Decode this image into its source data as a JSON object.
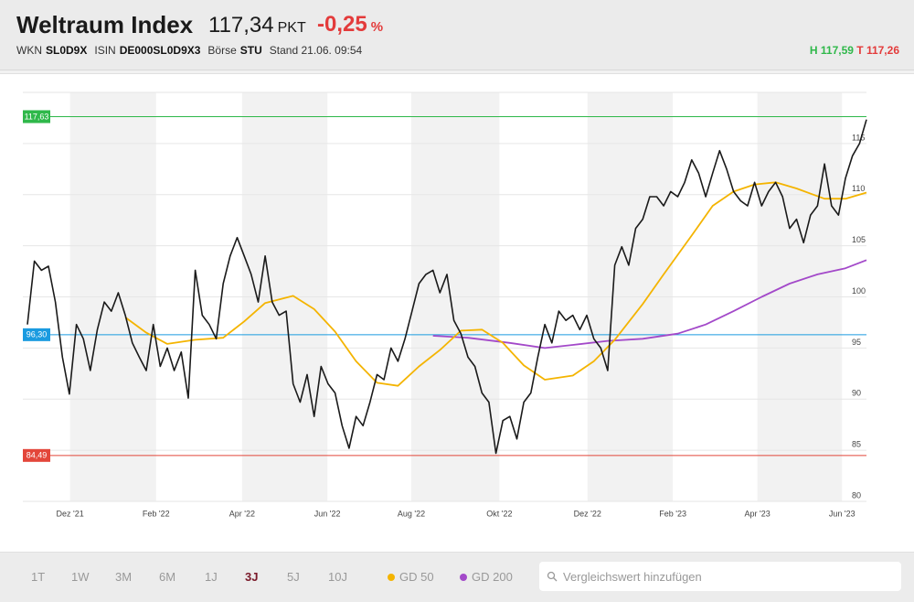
{
  "header": {
    "title": "Weltraum Index",
    "price": "117,34",
    "price_unit": "PKT",
    "change": "-0,25",
    "change_unit": "%",
    "meta": [
      {
        "label": "WKN",
        "value": "SL0D9X"
      },
      {
        "label": "ISIN",
        "value": "DE000SL0D9X3"
      },
      {
        "label": "Börse",
        "value": "STU"
      }
    ],
    "stand": "Stand 21.06. 09:54",
    "high": "H 117,59",
    "low": "T 117,26"
  },
  "chart_data": {
    "type": "line",
    "xlim": [
      0,
      120
    ],
    "xticks": [
      {
        "value": 6.1,
        "label": "Dez '21"
      },
      {
        "value": 18.4,
        "label": "Feb '22"
      },
      {
        "value": 30.7,
        "label": "Apr '22"
      },
      {
        "value": 42.9,
        "label": "Jun '22"
      },
      {
        "value": 54.9,
        "label": "Aug '22"
      },
      {
        "value": 67.5,
        "label": "Okt '22"
      },
      {
        "value": 80.1,
        "label": "Dez '22"
      },
      {
        "value": 92.3,
        "label": "Feb '23"
      },
      {
        "value": 104.4,
        "label": "Apr '23"
      },
      {
        "value": 116.5,
        "label": "Jun '23"
      }
    ],
    "ylim": [
      80,
      120
    ],
    "yticks": [
      80,
      85,
      90,
      95,
      100,
      105,
      110,
      115
    ],
    "grid": true,
    "reference_lines": [
      {
        "value": 117.63,
        "label": "117,63",
        "color": "#2fb84a"
      },
      {
        "value": 96.3,
        "label": "96,30",
        "color": "#1a9be0"
      },
      {
        "value": 84.49,
        "label": "84,49",
        "color": "#e3463a"
      }
    ],
    "series": [
      {
        "color": "#1a1a1a",
        "values": [
          97.3,
          103.5,
          102.6,
          103,
          99.5,
          94.1,
          90.5,
          97.3,
          95.9,
          92.8,
          96.8,
          99.5,
          98.6,
          100.4,
          98.2,
          95.5,
          94.1,
          92.8,
          97.3,
          93.2,
          95,
          92.8,
          94.6,
          90.1,
          102.6,
          98.2,
          97.3,
          95.9,
          101.3,
          104,
          105.8,
          104,
          102.2,
          99.5,
          104,
          99.5,
          98.2,
          98.6,
          91.5,
          89.7,
          92.4,
          88.3,
          93.2,
          91.5,
          90.6,
          87.4,
          85.2,
          88.3,
          87.4,
          89.7,
          92.4,
          91.9,
          95,
          93.7,
          95.9,
          98.6,
          101.3,
          102.2,
          102.6,
          100.4,
          102.2,
          97.7,
          96.4,
          94.1,
          93.2,
          90.6,
          89.7,
          84.7,
          87.9,
          88.3,
          86.1,
          89.7,
          90.6,
          94.1,
          97.3,
          95.5,
          98.6,
          97.7,
          98.2,
          96.8,
          98.2,
          95.9,
          95,
          92.8,
          103.1,
          104.9,
          103.1,
          106.7,
          107.6,
          109.8,
          109.8,
          108.9,
          110.3,
          109.8,
          111.2,
          113.4,
          112.1,
          109.8,
          112.1,
          114.3,
          112.5,
          110.3,
          109.4,
          108.9,
          111.2,
          108.9,
          110.3,
          111.2,
          109.8,
          106.7,
          107.6,
          105.3,
          108,
          108.9,
          113,
          108.9,
          108,
          111.6,
          113.8,
          115,
          117.34
        ]
      },
      {
        "name": "GD 50",
        "color": "#f4b400",
        "x": [
          14,
          17,
          20,
          24,
          28,
          31,
          34,
          38,
          41,
          44,
          47,
          50,
          53,
          56,
          59,
          62,
          65,
          68,
          71,
          74,
          78,
          81,
          84,
          88,
          91,
          95,
          98,
          101,
          104,
          107,
          110,
          114,
          117,
          120
        ],
        "values": [
          98,
          96.5,
          95.4,
          95.8,
          96,
          97.6,
          99.4,
          100.1,
          98.8,
          96.6,
          93.7,
          91.6,
          91.3,
          93.2,
          94.8,
          96.7,
          96.8,
          95.5,
          93.3,
          91.9,
          92.3,
          93.7,
          95.8,
          99.3,
          102.2,
          106,
          108.9,
          110.3,
          111,
          111.2,
          110.6,
          109.6,
          109.6,
          110.2
        ]
      },
      {
        "name": "GD 200",
        "color": "#a349c9",
        "x": [
          58,
          63,
          69,
          74,
          78,
          83,
          88,
          93,
          97,
          101,
          105,
          109,
          113,
          117,
          120
        ],
        "values": [
          96.2,
          96,
          95.5,
          95,
          95.3,
          95.7,
          95.9,
          96.4,
          97.3,
          98.6,
          100,
          101.3,
          102.2,
          102.8,
          103.6
        ]
      }
    ]
  },
  "controls": {
    "ranges": [
      "1T",
      "1W",
      "3M",
      "6M",
      "1J",
      "3J",
      "5J",
      "10J"
    ],
    "selected_range": "3J",
    "search_placeholder": "Vergleichswert hinzufügen"
  }
}
